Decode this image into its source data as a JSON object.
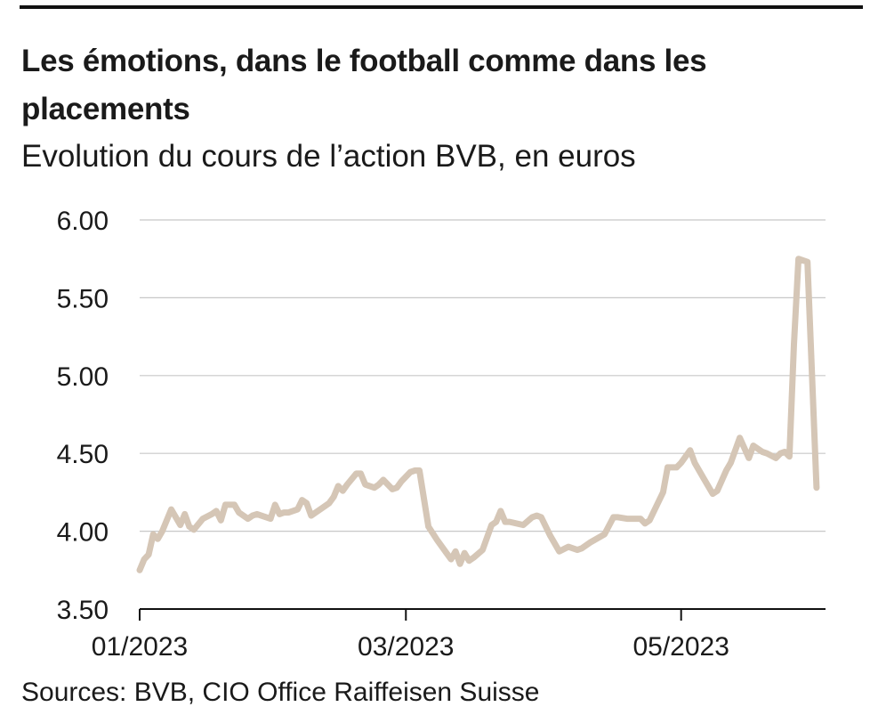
{
  "header": {
    "title": "Les émotions, dans le football comme dans les placements",
    "subtitle": "Evolution du cours de l’action BVB, en euros"
  },
  "footer": {
    "source": "Sources: BVB, CIO Office Raiffeisen Suisse"
  },
  "colors": {
    "line": "#d5c6b6",
    "grid": "#c8c8c8",
    "axis": "#111111",
    "rule": "#111111"
  },
  "chart_data": {
    "type": "line",
    "title": "Les émotions, dans le football comme dans les placements",
    "subtitle": "Evolution du cours de l’action BVB, en euros",
    "xlabel": "",
    "ylabel": "",
    "ylim": [
      3.5,
      6.0
    ],
    "yticks": [
      3.5,
      4.0,
      4.5,
      5.0,
      5.5,
      6.0
    ],
    "ytick_labels": [
      "3.50",
      "4.00",
      "4.50",
      "5.00",
      "5.50",
      "6.00"
    ],
    "xlim": [
      "2023-01-01",
      "2023-06-02"
    ],
    "xticks": [
      "2023-01-01",
      "2023-03-01",
      "2023-05-01"
    ],
    "xtick_labels": [
      "01/2023",
      "03/2023",
      "05/2023"
    ],
    "grid": true,
    "legend": "none",
    "series": [
      {
        "x": [
          "2023-01-01",
          "2023-01-02",
          "2023-01-03",
          "2023-01-04",
          "2023-01-05",
          "2023-01-06",
          "2023-01-08",
          "2023-01-10",
          "2023-01-11",
          "2023-01-12",
          "2023-01-13",
          "2023-01-15",
          "2023-01-17",
          "2023-01-18",
          "2023-01-19",
          "2023-01-20",
          "2023-01-21",
          "2023-01-22",
          "2023-01-23",
          "2023-01-25",
          "2023-01-26",
          "2023-01-27",
          "2023-01-30",
          "2023-01-31",
          "2023-02-01",
          "2023-02-02",
          "2023-02-03",
          "2023-02-05",
          "2023-02-06",
          "2023-02-07",
          "2023-02-08",
          "2023-02-09",
          "2023-02-10",
          "2023-02-12",
          "2023-02-13",
          "2023-02-14",
          "2023-02-15",
          "2023-02-16",
          "2023-02-18",
          "2023-02-19",
          "2023-02-20",
          "2023-02-21",
          "2023-02-22",
          "2023-02-23",
          "2023-02-24",
          "2023-02-26",
          "2023-02-27",
          "2023-02-28",
          "2023-03-02",
          "2023-03-03",
          "2023-03-04",
          "2023-03-06",
          "2023-03-08",
          "2023-03-10",
          "2023-03-11",
          "2023-03-12",
          "2023-03-13",
          "2023-03-14",
          "2023-03-15",
          "2023-03-16",
          "2023-03-18",
          "2023-03-20",
          "2023-03-21",
          "2023-03-22",
          "2023-03-23",
          "2023-03-24",
          "2023-03-27",
          "2023-03-29",
          "2023-03-30",
          "2023-03-31",
          "2023-04-02",
          "2023-04-04",
          "2023-04-06",
          "2023-04-08",
          "2023-04-09",
          "2023-04-11",
          "2023-04-14",
          "2023-04-16",
          "2023-04-17",
          "2023-04-19",
          "2023-04-20",
          "2023-04-22",
          "2023-04-23",
          "2023-04-24",
          "2023-04-27",
          "2023-04-28",
          "2023-04-30",
          "2023-05-01",
          "2023-05-03",
          "2023-05-04",
          "2023-05-06",
          "2023-05-08",
          "2023-05-09",
          "2023-05-11",
          "2023-05-12",
          "2023-05-14",
          "2023-05-16",
          "2023-05-17",
          "2023-05-19",
          "2023-05-20",
          "2023-05-22",
          "2023-05-23",
          "2023-05-24",
          "2023-05-25",
          "2023-05-26",
          "2023-05-27",
          "2023-05-29",
          "2023-05-31"
        ],
        "y": [
          3.75,
          3.82,
          3.85,
          3.98,
          3.95,
          4.0,
          4.14,
          4.04,
          4.11,
          4.03,
          4.01,
          4.08,
          4.11,
          4.13,
          4.07,
          4.17,
          4.17,
          4.17,
          4.12,
          4.08,
          4.1,
          4.11,
          4.08,
          4.17,
          4.11,
          4.12,
          4.12,
          4.14,
          4.2,
          4.18,
          4.1,
          4.12,
          4.14,
          4.18,
          4.22,
          4.29,
          4.26,
          4.3,
          4.37,
          4.37,
          4.3,
          4.29,
          4.28,
          4.3,
          4.33,
          4.27,
          4.28,
          4.32,
          4.38,
          4.39,
          4.39,
          4.03,
          3.94,
          3.86,
          3.82,
          3.87,
          3.79,
          3.86,
          3.81,
          3.83,
          3.88,
          4.04,
          4.06,
          4.13,
          4.06,
          4.06,
          4.04,
          4.09,
          4.1,
          4.09,
          3.97,
          3.87,
          3.9,
          3.88,
          3.89,
          3.93,
          3.98,
          4.09,
          4.09,
          4.08,
          4.08,
          4.08,
          4.05,
          4.07,
          4.25,
          4.41,
          4.41,
          4.44,
          4.52,
          4.44,
          4.34,
          4.24,
          4.26,
          4.39,
          4.44,
          4.6,
          4.47,
          4.55,
          4.51,
          4.5,
          4.47,
          4.5,
          4.51,
          4.48,
          5.2,
          5.75,
          5.73,
          4.28
        ]
      }
    ]
  }
}
